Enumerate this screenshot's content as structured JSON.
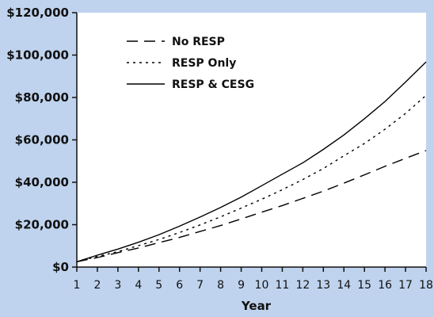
{
  "chart_data": {
    "type": "line",
    "title": "",
    "xlabel": "Year",
    "ylabel": "",
    "x": [
      1,
      2,
      3,
      4,
      5,
      6,
      7,
      8,
      9,
      10,
      11,
      12,
      13,
      14,
      15,
      16,
      17,
      18
    ],
    "xlim": [
      1,
      18
    ],
    "ylim": [
      0,
      120000
    ],
    "y_ticks": [
      0,
      20000,
      40000,
      60000,
      80000,
      100000,
      120000
    ],
    "y_tick_labels": [
      "$0",
      "$20,000",
      "$40,000",
      "$60,000",
      "$80,000",
      "$100,000",
      "$120,000"
    ],
    "x_tick_labels": [
      "1",
      "2",
      "3",
      "4",
      "5",
      "6",
      "7",
      "8",
      "9",
      "10",
      "11",
      "12",
      "13",
      "14",
      "15",
      "16",
      "17",
      "18"
    ],
    "grid": false,
    "legend_position": "top-left",
    "series": [
      {
        "name": "No RESP",
        "style": "dashed",
        "values": [
          2500,
          4500,
          6800,
          9000,
          11500,
          14000,
          16800,
          19600,
          22700,
          25900,
          29000,
          32400,
          35800,
          39600,
          43500,
          47500,
          51300,
          55000
        ]
      },
      {
        "name": "RESP Only",
        "style": "dotted",
        "values": [
          2500,
          5000,
          7300,
          10100,
          13000,
          16300,
          19900,
          23700,
          27800,
          32000,
          36500,
          41300,
          46500,
          52500,
          58300,
          65000,
          72500,
          81000
        ]
      },
      {
        "name": "RESP & CESG",
        "style": "solid",
        "values": [
          2500,
          5600,
          8500,
          11700,
          15300,
          19300,
          23600,
          28100,
          33000,
          38400,
          43800,
          49200,
          55500,
          62300,
          70000,
          78100,
          87300,
          96800
        ]
      }
    ]
  },
  "colors": {
    "background": "#bfd3ee",
    "plot_background": "#ffffff",
    "axis": "#111111",
    "series_line": "#000000"
  }
}
